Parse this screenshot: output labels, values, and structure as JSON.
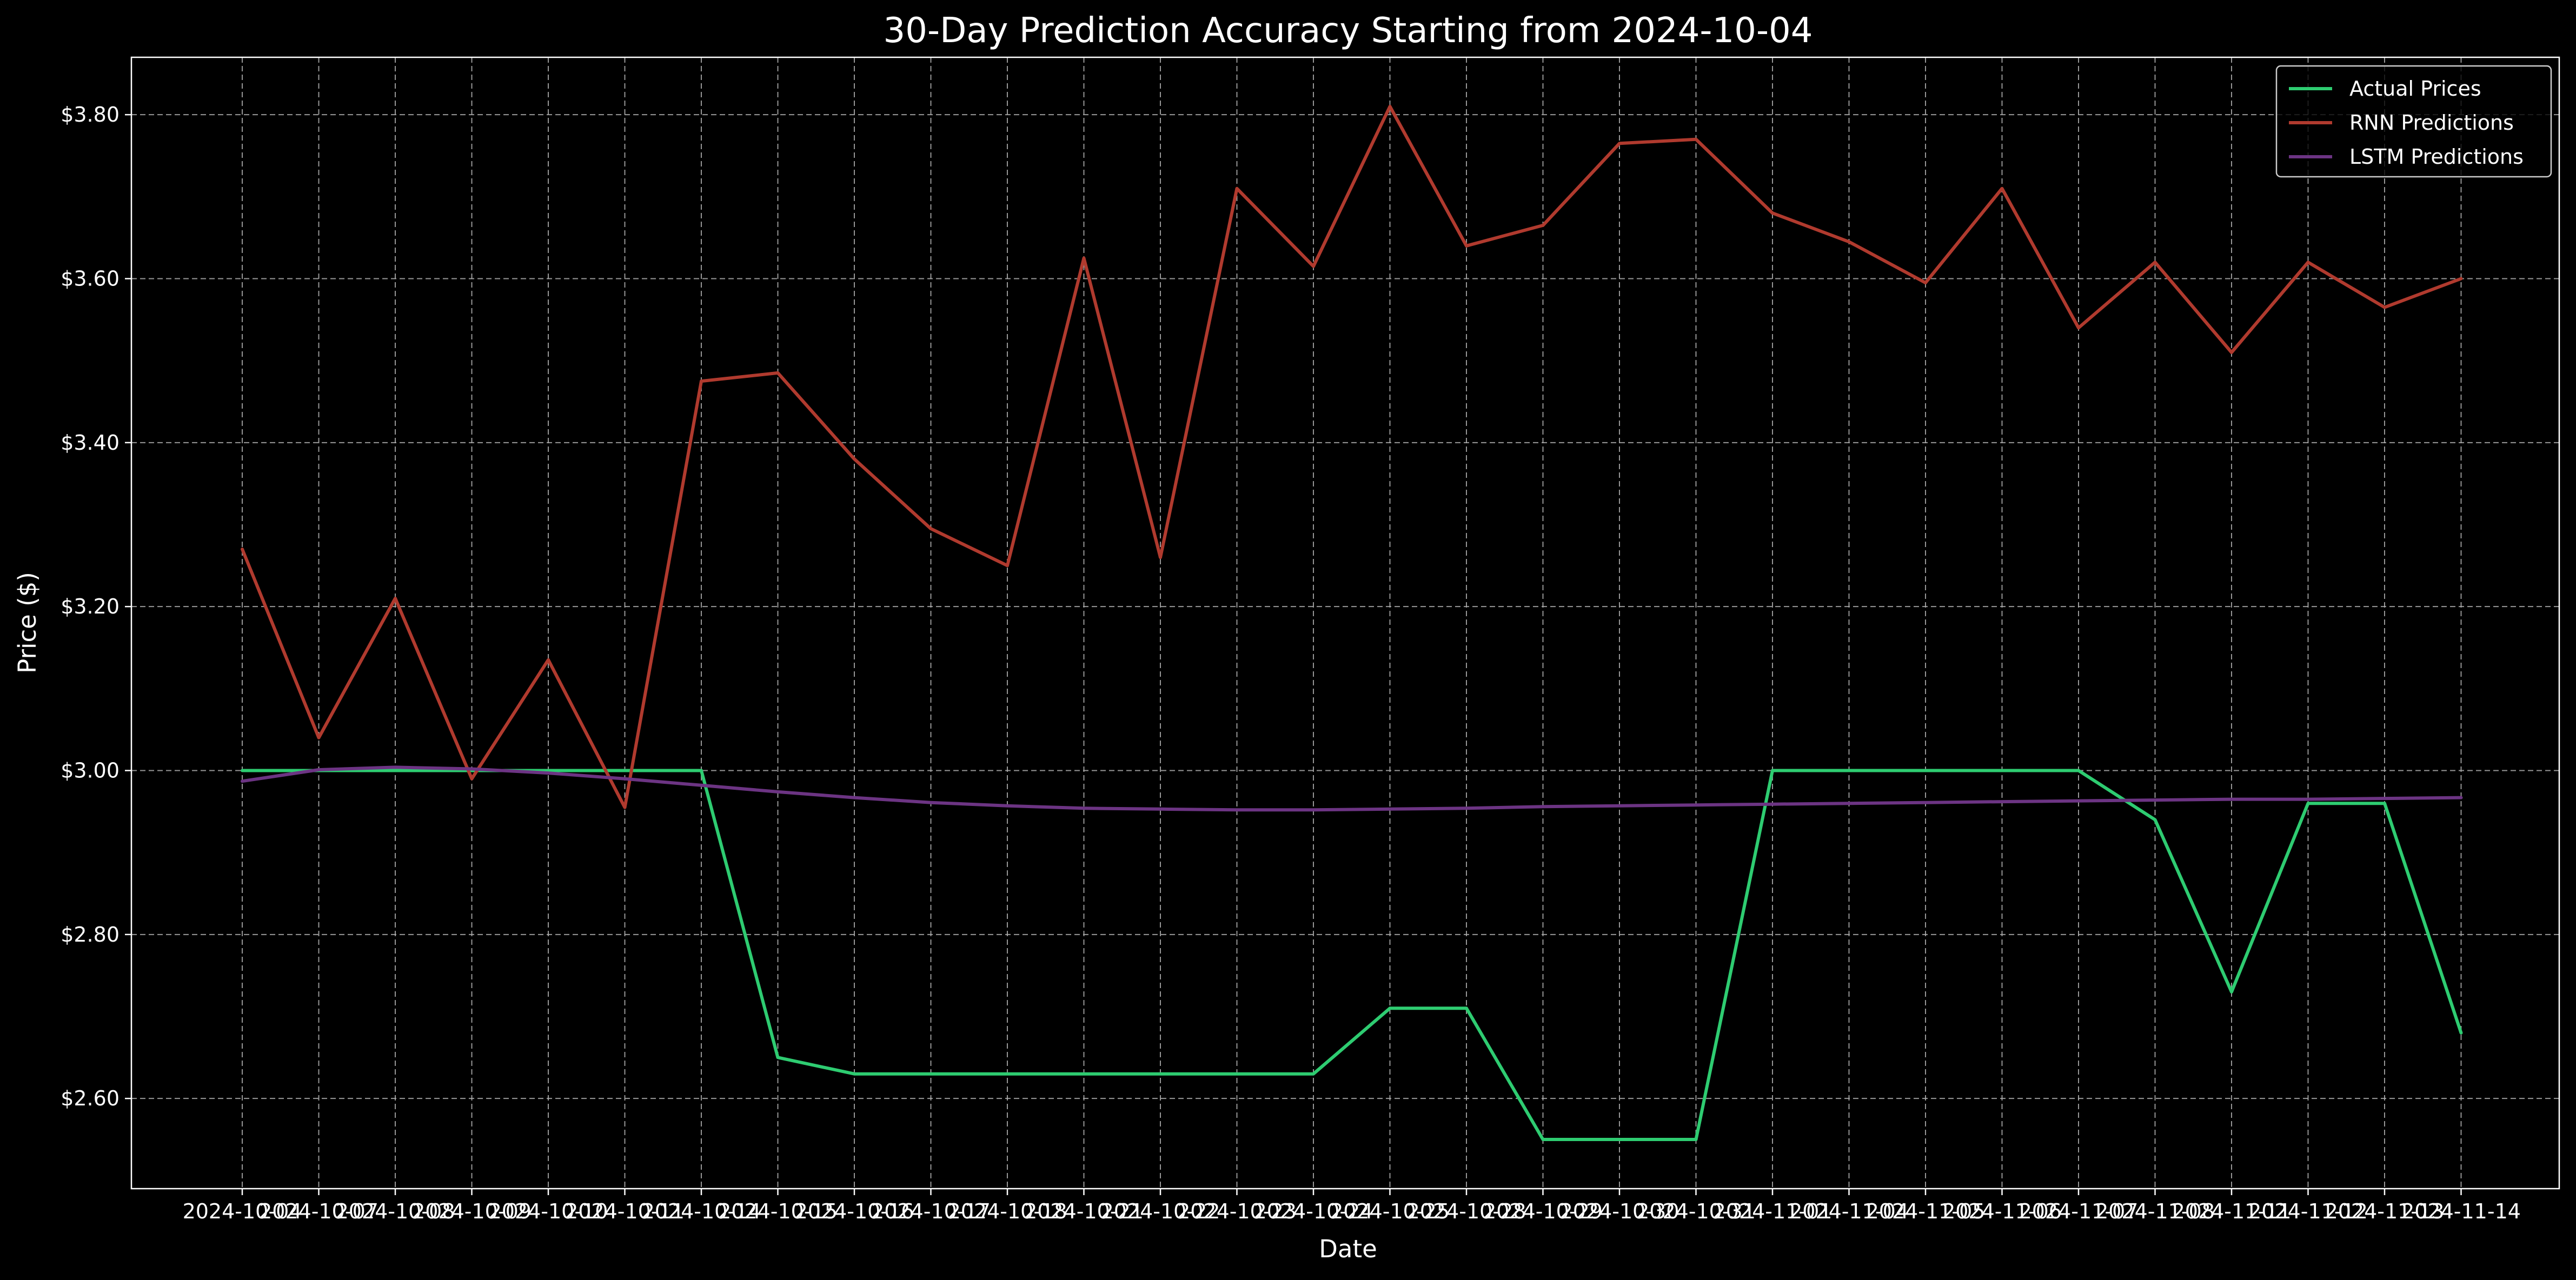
{
  "chart_data": {
    "type": "line",
    "title": "30-Day Prediction Accuracy Starting from 2024-10-04",
    "xlabel": "Date",
    "ylabel": "Price ($)",
    "x": [
      "2024-10-04",
      "2024-10-07",
      "2024-10-08",
      "2024-10-09",
      "2024-10-10",
      "2024-10-11",
      "2024-10-14",
      "2024-10-15",
      "2024-10-16",
      "2024-10-17",
      "2024-10-18",
      "2024-10-21",
      "2024-10-22",
      "2024-10-23",
      "2024-10-24",
      "2024-10-25",
      "2024-10-28",
      "2024-10-29",
      "2024-10-30",
      "2024-10-31",
      "2024-11-01",
      "2024-11-04",
      "2024-11-05",
      "2024-11-06",
      "2024-11-07",
      "2024-11-08",
      "2024-11-11",
      "2024-11-12",
      "2024-11-13",
      "2024-11-14"
    ],
    "ylim": [
      2.49,
      3.87
    ],
    "yticks": [
      2.6,
      2.8,
      3.0,
      3.2,
      3.4,
      3.6,
      3.8
    ],
    "ytick_labels": [
      "$2.60",
      "$2.80",
      "$3.00",
      "$3.20",
      "$3.40",
      "$3.60",
      "$3.80"
    ],
    "grid": true,
    "legend_position": "top-right",
    "series": [
      {
        "name": "Actual Prices",
        "color": "#2ecc71",
        "values": [
          3.0,
          3.0,
          3.0,
          3.0,
          3.0,
          3.0,
          3.0,
          2.65,
          2.63,
          2.63,
          2.63,
          2.63,
          2.63,
          2.63,
          2.63,
          2.71,
          2.71,
          2.55,
          2.55,
          2.55,
          3.0,
          3.0,
          3.0,
          3.0,
          3.0,
          2.94,
          2.73,
          2.96,
          2.96,
          2.68
        ]
      },
      {
        "name": "RNN Predictions",
        "color": "#b03a2e",
        "values": [
          3.27,
          3.04,
          3.21,
          2.99,
          3.135,
          2.955,
          3.475,
          3.485,
          3.38,
          3.295,
          3.25,
          3.625,
          3.26,
          3.71,
          3.615,
          3.81,
          3.64,
          3.665,
          3.765,
          3.77,
          3.68,
          3.645,
          3.595,
          3.71,
          3.54,
          3.62,
          3.51,
          3.62,
          3.565,
          3.6
        ]
      },
      {
        "name": "LSTM Predictions",
        "color": "#6c3483",
        "values": [
          2.987,
          3.001,
          3.004,
          3.002,
          2.997,
          2.99,
          2.982,
          2.974,
          2.967,
          2.961,
          2.957,
          2.954,
          2.953,
          2.952,
          2.952,
          2.953,
          2.954,
          2.956,
          2.957,
          2.958,
          2.959,
          2.96,
          2.961,
          2.962,
          2.963,
          2.964,
          2.965,
          2.965,
          2.966,
          2.967
        ]
      }
    ]
  }
}
